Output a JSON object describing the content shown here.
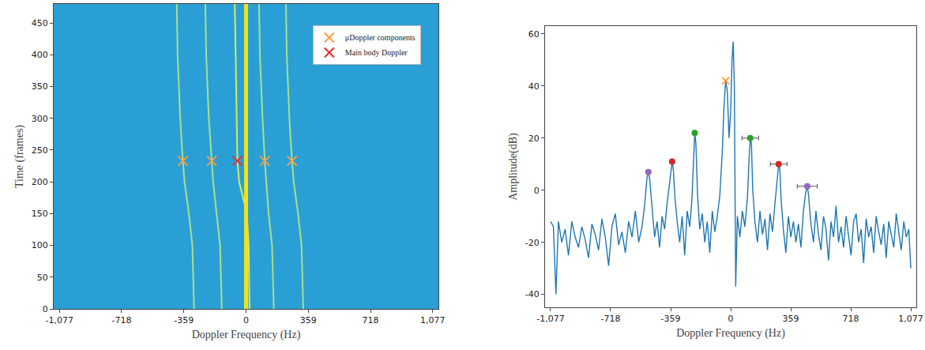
{
  "chart_data": [
    {
      "type": "line",
      "x_label": "Doppler Frequency (Hz)",
      "y_label": "Time (frames)",
      "xlim": [
        -1110,
        1110
      ],
      "xticks": [
        {
          "value": -1077,
          "label": "-1,077"
        },
        -718,
        -359,
        0,
        359,
        718,
        {
          "value": 1077,
          "label": "1,077"
        }
      ],
      "ylim": [
        0,
        480
      ],
      "yticks": [
        0,
        50,
        100,
        150,
        200,
        250,
        300,
        350,
        400,
        450
      ],
      "grid": false,
      "legend": "upper right",
      "series": [
        {
          "type": "line",
          "line_style": "solid",
          "color": "#a8e08a",
          "x": [
            -300,
            -310,
            -330,
            -355,
            -365,
            -380,
            -395,
            -400
          ],
          "y": [
            0,
            100,
            150,
            200,
            233,
            300,
            400,
            480
          ]
        },
        {
          "type": "line",
          "line_style": "solid",
          "color": "#a8e08a",
          "x": [
            -140,
            -150,
            -170,
            -190,
            -198,
            -215,
            -230,
            -235
          ],
          "y": [
            0,
            100,
            150,
            200,
            233,
            300,
            400,
            480
          ]
        },
        {
          "type": "line",
          "line_style": "solid",
          "color": "#d8e860",
          "x": [
            20,
            15,
            5,
            -40,
            -50,
            -55,
            -60,
            -65
          ],
          "y": [
            0,
            100,
            150,
            200,
            233,
            300,
            400,
            480
          ]
        },
        {
          "type": "line",
          "line_style": "solid",
          "color": "#a8e08a",
          "x": [
            160,
            150,
            130,
            115,
            108,
            95,
            80,
            75
          ],
          "y": [
            0,
            100,
            150,
            200,
            233,
            300,
            400,
            480
          ]
        },
        {
          "type": "line",
          "line_style": "solid",
          "color": "#a8e08a",
          "x": [
            330,
            320,
            300,
            275,
            265,
            250,
            235,
            230
          ],
          "y": [
            0,
            100,
            150,
            200,
            233,
            300,
            400,
            480
          ]
        },
        {
          "type": "line",
          "line_style": "bold",
          "color": "#f2e21a",
          "x": [
            0,
            0
          ],
          "y": [
            0,
            480
          ]
        },
        {
          "type": "scatter",
          "marker": "x",
          "name": "μDoppler components",
          "color": "#ff9f40",
          "x": [
            -365,
            -198,
            108,
            265
          ],
          "y": [
            233,
            233,
            233,
            233
          ]
        },
        {
          "type": "scatter",
          "marker": "x",
          "name": "Main body Doppler",
          "color": "#e8302a",
          "x": [
            -50
          ],
          "y": [
            233
          ]
        }
      ]
    },
    {
      "type": "line",
      "x_label": "Doppler Frequency (Hz)",
      "y_label": "Amplitude(dB)",
      "xlim": [
        -1110,
        1110
      ],
      "xticks": [
        {
          "value": -1077,
          "label": "-1,077"
        },
        -718,
        -359,
        0,
        359,
        718,
        {
          "value": 1077,
          "label": "1,077"
        }
      ],
      "ylim": [
        -45,
        63
      ],
      "yticks": [
        -40,
        -20,
        0,
        20,
        40,
        60
      ],
      "grid": false,
      "series": [
        {
          "type": "line",
          "color": "#1f77b4",
          "x": [
            -1077,
            -1060,
            -1045,
            -1030,
            -1010,
            -990,
            -970,
            -950,
            -930,
            -910,
            -890,
            -870,
            -850,
            -830,
            -810,
            -790,
            -770,
            -750,
            -730,
            -710,
            -690,
            -670,
            -650,
            -630,
            -610,
            -590,
            -570,
            -550,
            -530,
            -515,
            -500,
            -492,
            -484,
            -470,
            -455,
            -440,
            -425,
            -410,
            -395,
            -380,
            -365,
            -355,
            -350,
            -343,
            -333,
            -320,
            -305,
            -290,
            -275,
            -260,
            -245,
            -232,
            -222,
            -215,
            -208,
            -198,
            -185,
            -170,
            -155,
            -140,
            -125,
            -110,
            -95,
            -80,
            -65,
            -50,
            -40,
            -30,
            -20,
            -10,
            0,
            8,
            15,
            22,
            30,
            40,
            55,
            70,
            85,
            100,
            110,
            117,
            124,
            132,
            145,
            160,
            175,
            190,
            205,
            220,
            235,
            250,
            265,
            278,
            287,
            294,
            302,
            315,
            330,
            345,
            360,
            375,
            390,
            405,
            420,
            435,
            448,
            458,
            466,
            478,
            495,
            510,
            525,
            540,
            555,
            570,
            585,
            600,
            615,
            630,
            645,
            660,
            675,
            690,
            705,
            720,
            735,
            750,
            765,
            780,
            795,
            810,
            825,
            840,
            855,
            870,
            885,
            900,
            915,
            930,
            945,
            960,
            975,
            990,
            1005,
            1020,
            1035,
            1050,
            1065,
            1077
          ],
          "values": [
            -12,
            -14,
            -40,
            -12,
            -20,
            -15,
            -25,
            -12,
            -18,
            -22,
            -14,
            -19,
            -26,
            -13,
            -17,
            -23,
            -11,
            -18,
            -29,
            -14,
            -9,
            -21,
            -16,
            -24,
            -12,
            -18,
            -8,
            -20,
            -14,
            -6,
            5,
            7,
            4,
            -8,
            -18,
            -12,
            -22,
            -10,
            -15,
            -5,
            3,
            10,
            11,
            8,
            -3,
            -12,
            -20,
            -10,
            -25,
            -8,
            -14,
            -4,
            15,
            22,
            18,
            -2,
            -15,
            -9,
            -20,
            -12,
            -24,
            -8,
            -16,
            -10,
            -2,
            15,
            32,
            42,
            38,
            20,
            30,
            50,
            57,
            40,
            -37,
            -10,
            -18,
            -8,
            -14,
            -3,
            12,
            20,
            18,
            0,
            -12,
            -20,
            -8,
            -17,
            -11,
            -23,
            -9,
            -16,
            -5,
            5,
            10,
            8,
            -4,
            -15,
            -24,
            -10,
            -18,
            -12,
            -20,
            -13,
            -22,
            -8,
            -1,
            1.5,
            -2,
            -12,
            -20,
            -8,
            -17,
            -23,
            -10,
            -15,
            -27,
            -12,
            -18,
            -6,
            -20,
            -14,
            -22,
            -10,
            -17,
            -25,
            -12,
            -9,
            -20,
            -15,
            -28,
            -11,
            -18,
            -14,
            -24,
            -10,
            -16,
            -21,
            -13,
            -26,
            -12,
            -17,
            -22,
            -9,
            -16,
            -23,
            -12,
            -18,
            -15,
            -30
          ]
        },
        {
          "type": "scatter",
          "marker": "x",
          "color": "#ff8c1a",
          "x": [
            -30
          ],
          "values": [
            42
          ]
        },
        {
          "type": "scatter",
          "marker": "circle",
          "color": "#2ca02c",
          "x": [
            -215
          ],
          "values": [
            22
          ]
        },
        {
          "type": "scatter",
          "marker": "circle",
          "color": "#2ca02c",
          "x": [
            117
          ],
          "values": [
            20
          ],
          "errors": [
            50
          ]
        },
        {
          "type": "scatter",
          "marker": "circle",
          "color": "#d62728",
          "x": [
            -350
          ],
          "values": [
            11
          ]
        },
        {
          "type": "scatter",
          "marker": "circle",
          "color": "#d62728",
          "x": [
            287
          ],
          "values": [
            10
          ],
          "errors": [
            50
          ]
        },
        {
          "type": "scatter",
          "marker": "circle",
          "color": "#9467bd",
          "x": [
            -492
          ],
          "values": [
            7
          ]
        },
        {
          "type": "scatter",
          "marker": "circle",
          "color": "#9467bd",
          "x": [
            458
          ],
          "values": [
            1.5
          ],
          "errors": [
            60
          ]
        }
      ]
    }
  ]
}
